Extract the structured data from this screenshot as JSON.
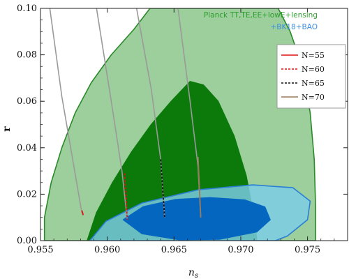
{
  "chart_data": {
    "type": "contour",
    "xlabel": "n",
    "xlabel_subscript": "s",
    "ylabel": "r",
    "xlim": [
      0.955,
      0.978
    ],
    "ylim": [
      0.0,
      0.1
    ],
    "xticks": [
      "0.955",
      "0.960",
      "0.965",
      "0.970",
      "0.975"
    ],
    "xtick_values": [
      0.955,
      0.96,
      0.965,
      0.97,
      0.975
    ],
    "yticks": [
      "0.00",
      "0.02",
      "0.04",
      "0.06",
      "0.08",
      "0.10"
    ],
    "ytick_values": [
      0.0,
      0.02,
      0.04,
      0.06,
      0.08,
      0.1
    ],
    "annotations": [
      {
        "text": "Planck TT,TE,EE+lowE+lensing",
        "color": "#2e9c2e"
      },
      {
        "text": "+BK18+BAO",
        "color": "#3d8ee0"
      }
    ],
    "legend": {
      "placement": "upper-right",
      "entries": [
        {
          "label": "N=55",
          "color": "#e01010",
          "style": "solid"
        },
        {
          "label": "N=60",
          "color": "#e01010",
          "style": "dashed"
        },
        {
          "label": "N=65",
          "color": "#111111",
          "style": "dashed"
        },
        {
          "label": "N=70",
          "color": "#9a7a5a",
          "style": "solid"
        }
      ]
    },
    "regions": [
      {
        "name": "Planck 95%",
        "color": "#9ccf9c",
        "edge": "#2a8a2a",
        "points": [
          [
            0.9553,
            0.0
          ],
          [
            0.9553,
            0.01
          ],
          [
            0.9558,
            0.025
          ],
          [
            0.9566,
            0.04
          ],
          [
            0.9576,
            0.055
          ],
          [
            0.9588,
            0.068
          ],
          [
            0.9603,
            0.08
          ],
          [
            0.962,
            0.091
          ],
          [
            0.9632,
            0.1
          ],
          [
            0.9728,
            0.1
          ],
          [
            0.9737,
            0.09
          ],
          [
            0.9746,
            0.075
          ],
          [
            0.9752,
            0.055
          ],
          [
            0.9755,
            0.035
          ],
          [
            0.9756,
            0.015
          ],
          [
            0.9756,
            0.0
          ]
        ]
      },
      {
        "name": "Planck 68%",
        "color": "#0b7a0b",
        "edge": "#0b7a0b",
        "points": [
          [
            0.9585,
            0.0
          ],
          [
            0.9592,
            0.012
          ],
          [
            0.9604,
            0.025
          ],
          [
            0.9618,
            0.038
          ],
          [
            0.9633,
            0.05
          ],
          [
            0.9648,
            0.06
          ],
          [
            0.9662,
            0.0685
          ],
          [
            0.9672,
            0.067
          ],
          [
            0.9683,
            0.06
          ],
          [
            0.9695,
            0.045
          ],
          [
            0.9704,
            0.028
          ],
          [
            0.971,
            0.01
          ],
          [
            0.9712,
            0.0
          ]
        ]
      },
      {
        "name": "BK18 95%",
        "color": "#7ccce8",
        "edge": "#2a7fd4",
        "opacity": 0.82,
        "points": [
          [
            0.9587,
            0.0
          ],
          [
            0.9599,
            0.0083
          ],
          [
            0.9626,
            0.0162
          ],
          [
            0.9668,
            0.0219
          ],
          [
            0.9709,
            0.024
          ],
          [
            0.9739,
            0.0228
          ],
          [
            0.9752,
            0.017
          ],
          [
            0.975,
            0.009
          ],
          [
            0.9735,
            0.002
          ],
          [
            0.9726,
            0.0
          ],
          [
            0.9587,
            0.0
          ]
        ]
      },
      {
        "name": "BK18 68%",
        "color": "#0566c0",
        "edge": "#0566c0",
        "points": [
          [
            0.9612,
            0.009
          ],
          [
            0.9627,
            0.0146
          ],
          [
            0.9651,
            0.0177
          ],
          [
            0.9677,
            0.0185
          ],
          [
            0.9703,
            0.0175
          ],
          [
            0.9718,
            0.0145
          ],
          [
            0.9722,
            0.009
          ],
          [
            0.9712,
            0.0038
          ],
          [
            0.9684,
            0.0006
          ],
          [
            0.9654,
            0.0004
          ],
          [
            0.9626,
            0.003
          ],
          [
            0.9612,
            0.009
          ]
        ]
      }
    ],
    "grey_lines": [
      {
        "x": [
          0.9557,
          0.9566,
          0.9575,
          0.9581
        ],
        "y": [
          0.1,
          0.062,
          0.032,
          0.012
        ]
      },
      {
        "x": [
          0.9592,
          0.9603,
          0.9611,
          0.9615
        ],
        "y": [
          0.1,
          0.06,
          0.03,
          0.009
        ]
      },
      {
        "x": [
          0.9622,
          0.9633,
          0.964,
          0.9643
        ],
        "y": [
          0.1,
          0.065,
          0.035,
          0.01
        ]
      },
      {
        "x": [
          0.9653,
          0.9662,
          0.9668,
          0.967
        ],
        "y": [
          0.1,
          0.06,
          0.032,
          0.01
        ]
      }
    ],
    "series": [
      {
        "name": "N=55",
        "color": "#e01010",
        "style": "solid",
        "x": [
          0.9581,
          0.9582
        ],
        "y": [
          0.013,
          0.011
        ]
      },
      {
        "name": "N=60",
        "color": "#e01010",
        "style": "dashed",
        "x": [
          0.9613,
          0.9615
        ],
        "y": [
          0.029,
          0.009
        ]
      },
      {
        "name": "N=65",
        "color": "#111111",
        "style": "dashed",
        "x": [
          0.964,
          0.9643
        ],
        "y": [
          0.035,
          0.01
        ]
      },
      {
        "name": "N=70",
        "color": "#9a7a5a",
        "style": "solid",
        "x": [
          0.9668,
          0.967
        ],
        "y": [
          0.036,
          0.01
        ]
      }
    ]
  }
}
